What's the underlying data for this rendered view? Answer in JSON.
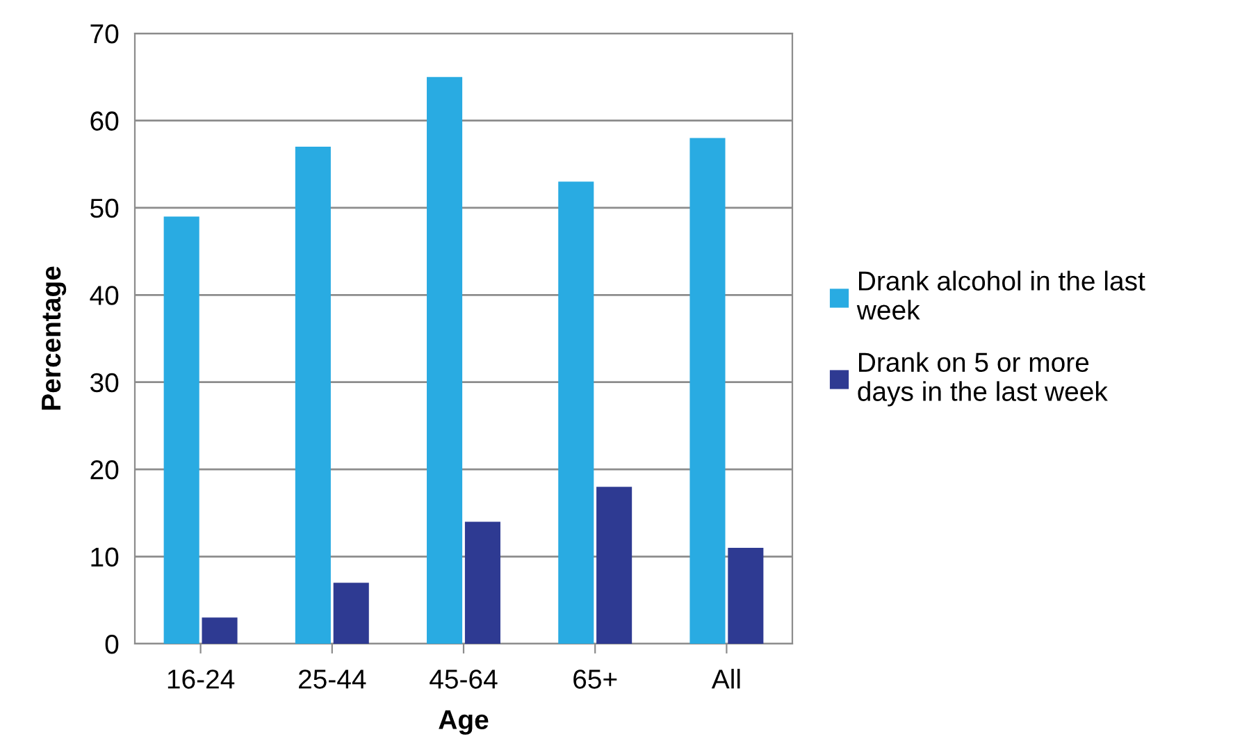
{
  "chart_data": {
    "type": "bar",
    "xlabel": "Age",
    "ylabel": "Percentage",
    "categories": [
      "16-24",
      "25-44",
      "45-64",
      "65+",
      "All"
    ],
    "series": [
      {
        "name": "Drank alcohol in the last\nweek",
        "color": "#29abe2",
        "values": [
          49,
          57,
          65,
          53,
          58
        ]
      },
      {
        "name": "Drank on 5 or more\ndays in the last week",
        "color": "#2e3a92",
        "values": [
          3,
          7,
          14,
          18,
          11
        ]
      }
    ],
    "ylim": [
      0,
      70
    ],
    "yticks": [
      0,
      10,
      20,
      30,
      40,
      50,
      60,
      70
    ],
    "grid": "y",
    "legend": "right"
  }
}
